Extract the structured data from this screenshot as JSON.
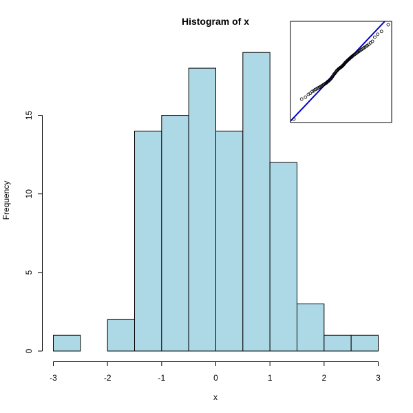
{
  "chart_data": {
    "type": "bar",
    "title": "Histogram of x",
    "xlabel": "x",
    "ylabel": "Frequency",
    "bins": [
      {
        "x0": -3.0,
        "x1": -2.5,
        "count": 1
      },
      {
        "x0": -2.5,
        "x1": -2.0,
        "count": 0
      },
      {
        "x0": -2.0,
        "x1": -1.5,
        "count": 2
      },
      {
        "x0": -1.5,
        "x1": -1.0,
        "count": 14
      },
      {
        "x0": -1.0,
        "x1": -0.5,
        "count": 15
      },
      {
        "x0": -0.5,
        "x1": 0.0,
        "count": 18
      },
      {
        "x0": 0.0,
        "x1": 0.5,
        "count": 14
      },
      {
        "x0": 0.5,
        "x1": 1.0,
        "count": 19
      },
      {
        "x0": 1.0,
        "x1": 1.5,
        "count": 12
      },
      {
        "x0": 1.5,
        "x1": 2.0,
        "count": 3
      },
      {
        "x0": 2.0,
        "x1": 2.5,
        "count": 1
      },
      {
        "x0": 2.5,
        "x1": 3.0,
        "count": 1
      }
    ],
    "xlim": [
      -3,
      3
    ],
    "ylim": [
      0,
      19
    ],
    "xticks": [
      -3,
      -2,
      -1,
      0,
      1,
      2,
      3
    ],
    "yticks": [
      0,
      5,
      10,
      15
    ],
    "bar_color": "#add8e6",
    "inset": {
      "type": "scatter",
      "line_color": "#0000cd",
      "x": [
        -2.45,
        -2.05,
        -1.85,
        -1.7,
        -1.6,
        -1.5,
        -1.42,
        -1.35,
        -1.28,
        -1.22,
        -1.16,
        -1.11,
        -1.06,
        -1.01,
        -0.96,
        -0.92,
        -0.88,
        -0.84,
        -0.8,
        -0.76,
        -0.72,
        -0.68,
        -0.64,
        -0.61,
        -0.57,
        -0.54,
        -0.5,
        -0.47,
        -0.44,
        -0.4,
        -0.37,
        -0.34,
        -0.31,
        -0.28,
        -0.25,
        -0.22,
        -0.19,
        -0.16,
        -0.13,
        -0.1,
        -0.07,
        -0.04,
        -0.01,
        0.02,
        0.05,
        0.08,
        0.11,
        0.14,
        0.17,
        0.2,
        0.23,
        0.26,
        0.29,
        0.32,
        0.35,
        0.38,
        0.42,
        0.45,
        0.48,
        0.52,
        0.55,
        0.59,
        0.62,
        0.66,
        0.7,
        0.74,
        0.78,
        0.82,
        0.86,
        0.9,
        0.95,
        1.0,
        1.05,
        1.1,
        1.16,
        1.22,
        1.29,
        1.36,
        1.44,
        1.53,
        1.63,
        1.75,
        1.9,
        2.1,
        2.45
      ],
      "y": [
        -2.6,
        -1.55,
        -1.45,
        -1.3,
        -1.25,
        -1.15,
        -1.12,
        -1.05,
        -1.02,
        -0.98,
        -0.95,
        -0.93,
        -0.88,
        -0.86,
        -0.83,
        -0.8,
        -0.78,
        -0.75,
        -0.72,
        -0.7,
        -0.66,
        -0.62,
        -0.6,
        -0.57,
        -0.52,
        -0.49,
        -0.45,
        -0.4,
        -0.36,
        -0.3,
        -0.25,
        -0.22,
        -0.18,
        -0.14,
        -0.1,
        -0.06,
        -0.03,
        0.0,
        0.03,
        0.05,
        0.08,
        0.1,
        0.12,
        0.14,
        0.17,
        0.2,
        0.23,
        0.26,
        0.3,
        0.34,
        0.37,
        0.4,
        0.43,
        0.46,
        0.49,
        0.52,
        0.55,
        0.58,
        0.61,
        0.64,
        0.67,
        0.7,
        0.73,
        0.76,
        0.79,
        0.82,
        0.85,
        0.88,
        0.91,
        0.94,
        0.97,
        1.0,
        1.04,
        1.08,
        1.12,
        1.16,
        1.2,
        1.26,
        1.32,
        1.4,
        1.48,
        1.7,
        1.85,
        2.0,
        2.35
      ]
    }
  }
}
